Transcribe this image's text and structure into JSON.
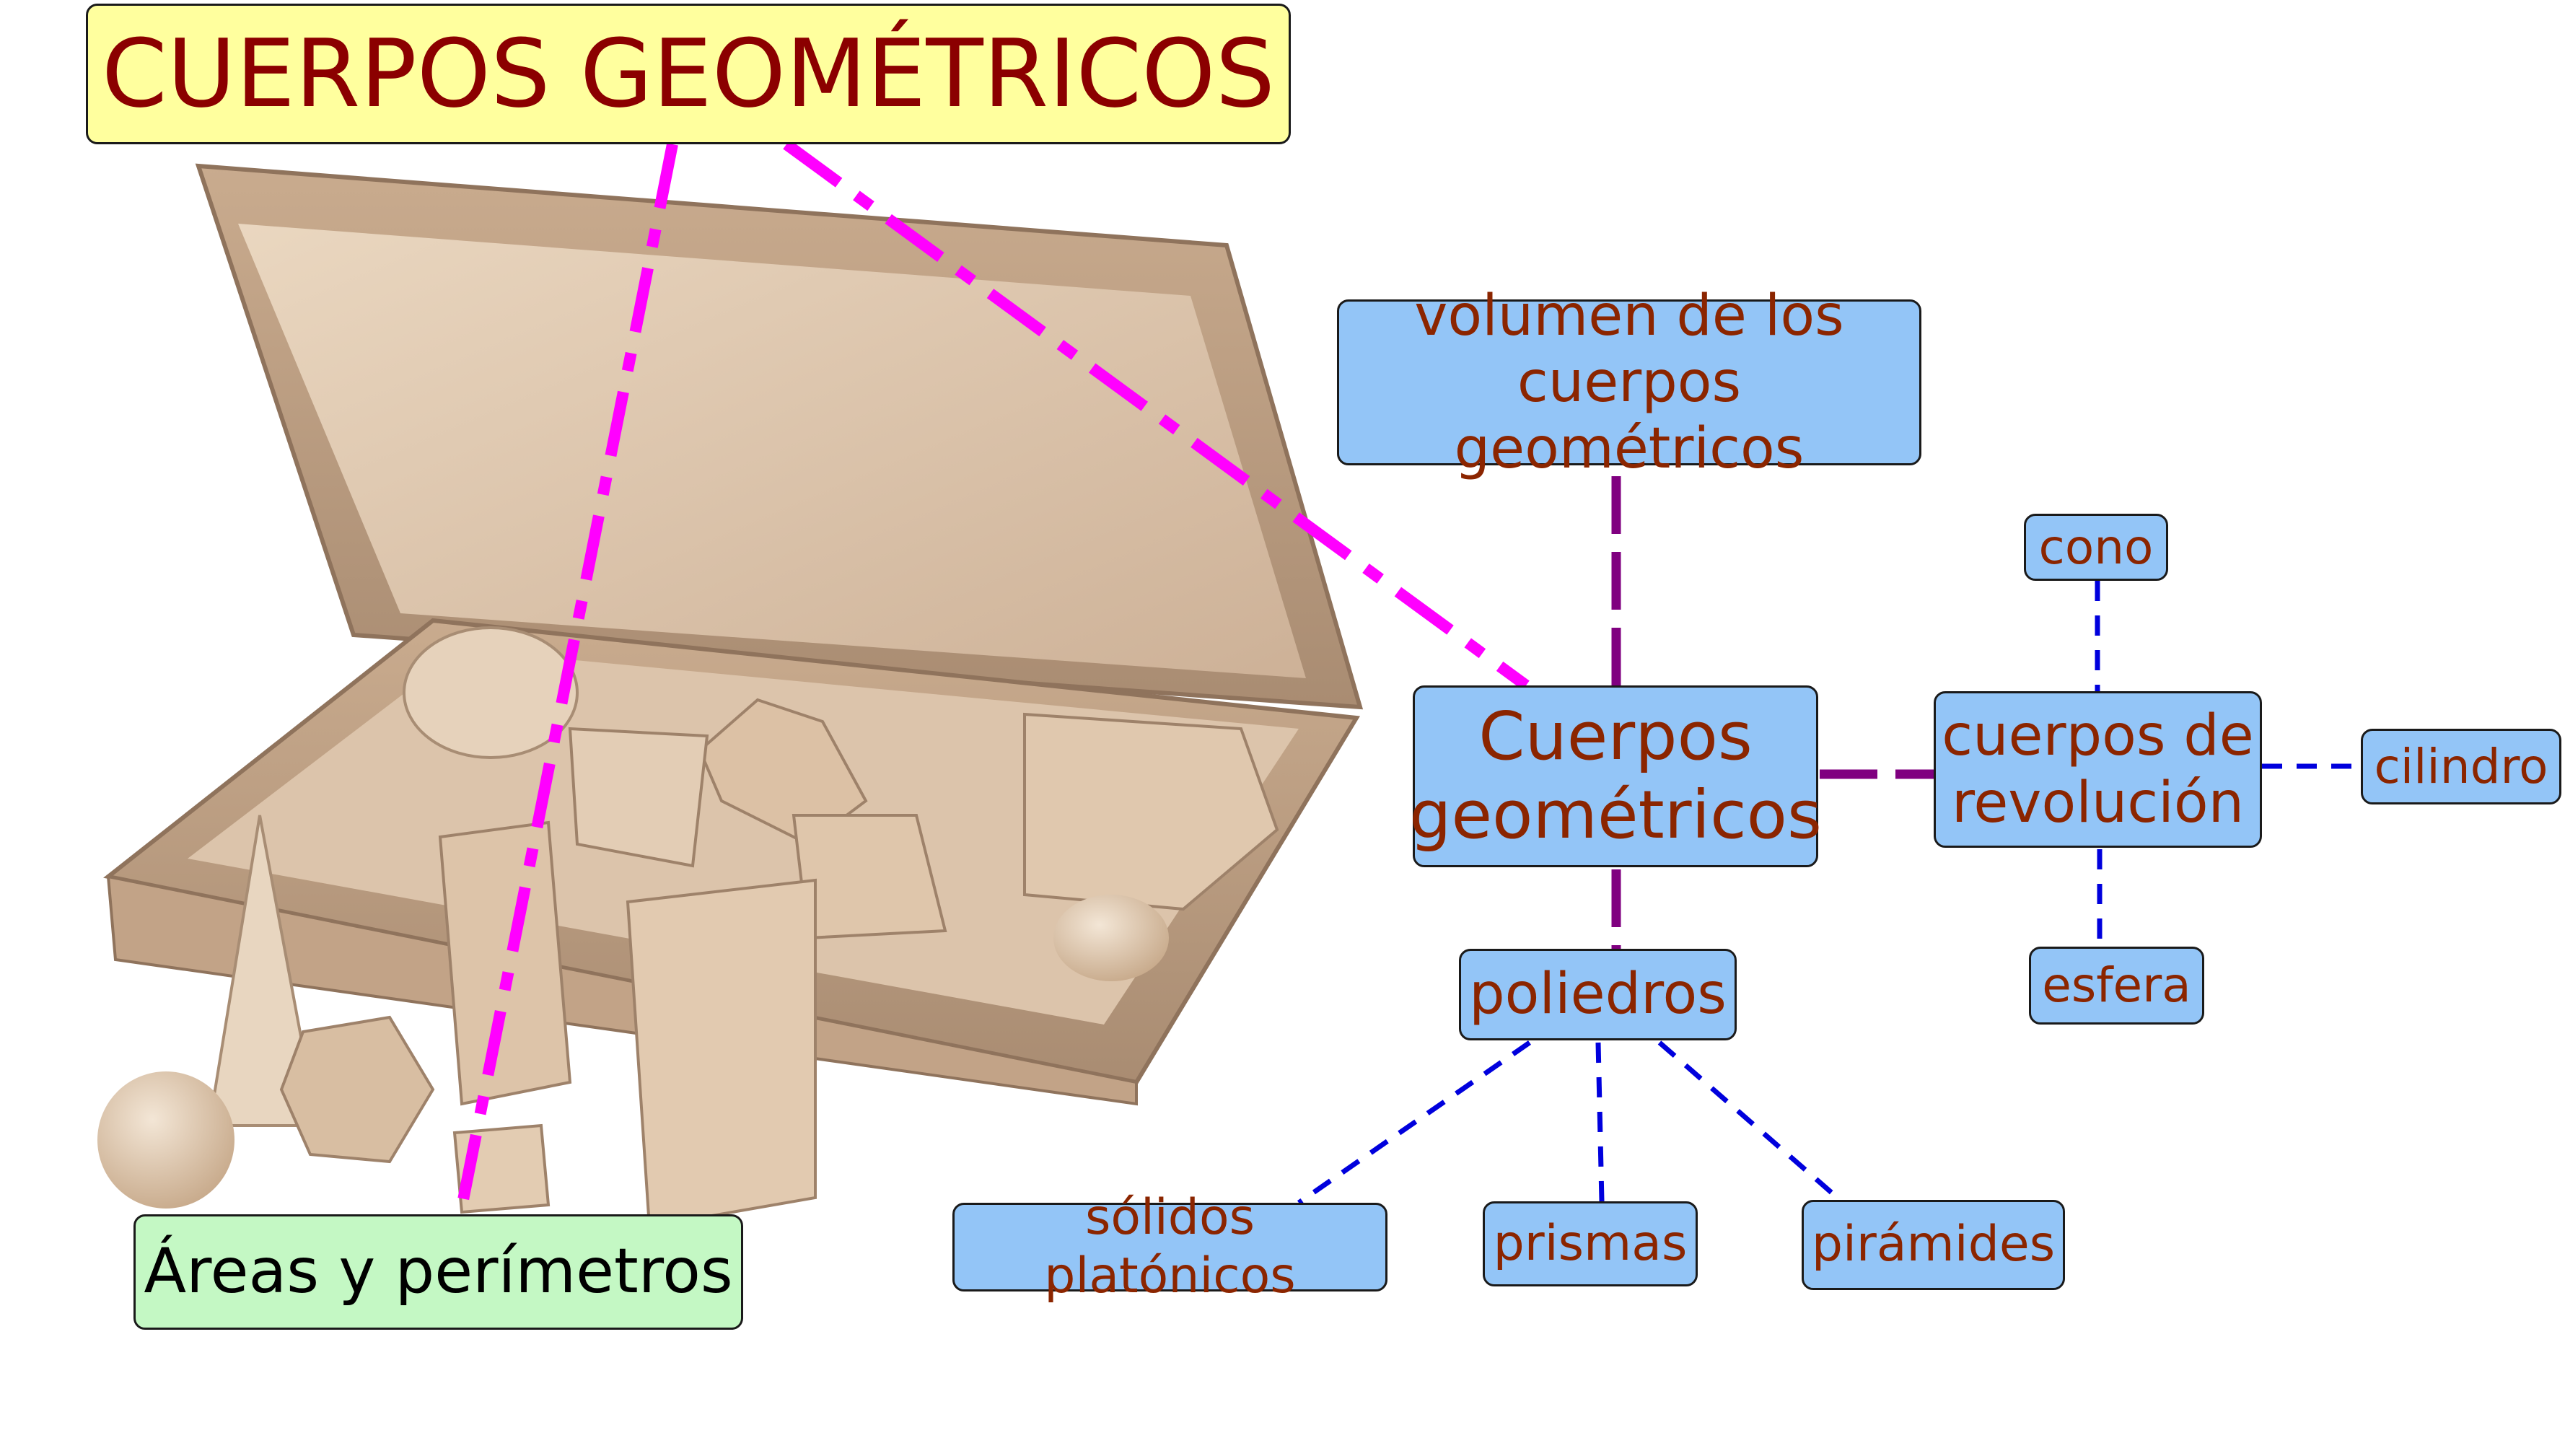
{
  "title": "CUERPOS GEOMÉTRICOS",
  "areas": "Áreas y perímetros",
  "central": "Cuerpos\ngeométricos",
  "volumen": "volumen de los\ncuerpos geométricos",
  "poliedros": "poliedros",
  "revolucion": "cuerpos de\nrevolución",
  "cono": "cono",
  "cilindro": "cilindro",
  "esfera": "esfera",
  "platonicos": "sólidos platónicos",
  "prismas": "prismas",
  "piramides": "pirámides",
  "colors": {
    "node_blue": "#93c5f7",
    "title_bg": "#ffff9e",
    "title_text": "#8b0000",
    "areas_bg": "#c4f8c4",
    "node_text": "#8b2500",
    "magenta_link": "#ff00ff",
    "purple_link": "#800080",
    "blue_link": "#0000dd"
  },
  "illustration": "wooden-geometric-solids-box"
}
